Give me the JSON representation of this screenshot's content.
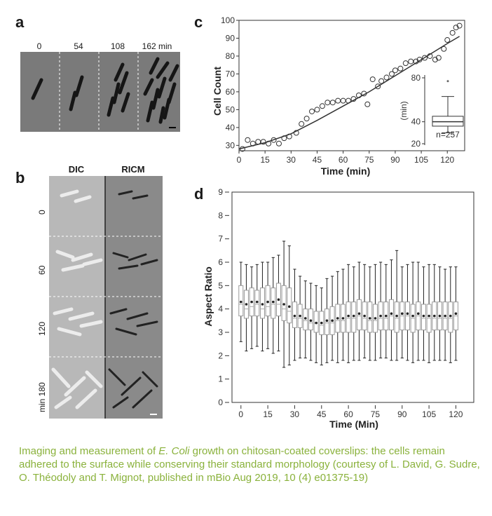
{
  "panels": {
    "a": {
      "letter": "a",
      "time_labels": [
        "0",
        "54",
        "108",
        "162 min"
      ]
    },
    "b": {
      "letter": "b",
      "columns": [
        "DIC",
        "RICM"
      ],
      "rows": [
        "0",
        "60",
        "120",
        "min 180"
      ]
    },
    "c": {
      "letter": "c",
      "ylabel": "Cell Count",
      "xlabel": "Time (min)",
      "inset_ylabel": "(min)",
      "inset_n": "n=257"
    },
    "d": {
      "letter": "d",
      "ylabel": "Aspect Ratio",
      "xlabel": "Time (Min)"
    }
  },
  "caption": {
    "pre": "Imaging and measurement of ",
    "italic": "E. Coli",
    "post": " growth on chitosan-coated coverslips: the cells remain adhered to the surface while conserving their standard morphology (courtesy of L. David, G. Sudre, O. Théodoly and T. Mignot, published in mBio Aug 2019, 10 (4) e01375-19)"
  },
  "chart_data": [
    {
      "type": "scatter",
      "panel": "c",
      "xlabel": "Time (min)",
      "ylabel": "Cell Count",
      "xlim": [
        0,
        130
      ],
      "ylim": [
        27,
        100
      ],
      "xticks": [
        0,
        15,
        30,
        45,
        60,
        75,
        90,
        105,
        120
      ],
      "yticks": [
        30,
        40,
        50,
        60,
        70,
        80,
        90,
        100
      ],
      "points": [
        [
          2,
          28
        ],
        [
          5,
          33
        ],
        [
          8,
          31
        ],
        [
          11,
          32
        ],
        [
          14,
          32
        ],
        [
          17,
          31
        ],
        [
          20,
          33
        ],
        [
          23,
          31
        ],
        [
          26,
          34
        ],
        [
          29,
          35
        ],
        [
          33,
          37
        ],
        [
          36,
          42
        ],
        [
          39,
          45
        ],
        [
          42,
          49
        ],
        [
          45,
          50
        ],
        [
          48,
          52
        ],
        [
          51,
          54
        ],
        [
          54,
          54
        ],
        [
          57,
          55
        ],
        [
          60,
          55
        ],
        [
          63,
          55
        ],
        [
          66,
          56
        ],
        [
          69,
          58
        ],
        [
          72,
          59
        ],
        [
          74,
          53
        ],
        [
          77,
          67
        ],
        [
          80,
          63
        ],
        [
          82,
          66
        ],
        [
          85,
          68
        ],
        [
          88,
          70
        ],
        [
          90,
          72
        ],
        [
          93,
          73
        ],
        [
          96,
          76
        ],
        [
          99,
          77
        ],
        [
          102,
          77
        ],
        [
          104,
          78
        ],
        [
          107,
          79
        ],
        [
          110,
          80
        ],
        [
          113,
          78
        ],
        [
          115,
          79
        ],
        [
          118,
          84
        ],
        [
          120,
          89
        ],
        [
          123,
          93
        ],
        [
          125,
          96
        ],
        [
          127,
          97
        ]
      ],
      "fit": [
        [
          0,
          28
        ],
        [
          15,
          31.5
        ],
        [
          30,
          36.5
        ],
        [
          45,
          44
        ],
        [
          60,
          52
        ],
        [
          75,
          60
        ],
        [
          90,
          69
        ],
        [
          105,
          78
        ],
        [
          120,
          87
        ],
        [
          127,
          91
        ]
      ],
      "grid": false,
      "inset": {
        "type": "boxplot",
        "ylabel": "(min)",
        "yticks": [
          20,
          40,
          80
        ],
        "ylim": [
          20,
          80
        ],
        "whisker_low": 30,
        "q1": 36,
        "median": 40,
        "q3": 45,
        "whisker_high": 63,
        "outliers": [
          77
        ],
        "annotation": "n=257"
      }
    },
    {
      "type": "boxplot",
      "panel": "d",
      "xlabel": "Time (Min)",
      "ylabel": "Aspect Ratio",
      "ylim": [
        0,
        9
      ],
      "yticks": [
        0,
        1,
        2,
        3,
        4,
        5,
        6,
        7,
        8,
        9
      ],
      "xticks": [
        0,
        15,
        30,
        45,
        60,
        75,
        90,
        105,
        120
      ],
      "x_start": 0,
      "x_step": 3,
      "boxes": [
        {
          "wl": 2.6,
          "q1": 3.7,
          "med": 4.2,
          "q3": 5.0,
          "wh": 6.0,
          "mean": 4.3
        },
        {
          "wl": 2.2,
          "q1": 3.6,
          "med": 4.0,
          "q3": 4.8,
          "wh": 5.9,
          "mean": 4.2
        },
        {
          "wl": 2.3,
          "q1": 3.7,
          "med": 4.1,
          "q3": 4.9,
          "wh": 5.8,
          "mean": 4.3
        },
        {
          "wl": 2.4,
          "q1": 3.7,
          "med": 4.2,
          "q3": 4.8,
          "wh": 5.9,
          "mean": 4.3
        },
        {
          "wl": 2.2,
          "q1": 3.6,
          "med": 4.0,
          "q3": 4.9,
          "wh": 6.0,
          "mean": 4.2
        },
        {
          "wl": 2.3,
          "q1": 3.7,
          "med": 4.1,
          "q3": 5.0,
          "wh": 6.0,
          "mean": 4.3
        },
        {
          "wl": 2.1,
          "q1": 3.6,
          "med": 4.2,
          "q3": 4.9,
          "wh": 6.2,
          "mean": 4.3
        },
        {
          "wl": 2.2,
          "q1": 3.7,
          "med": 4.2,
          "q3": 5.1,
          "wh": 6.3,
          "mean": 4.4
        },
        {
          "wl": 1.5,
          "q1": 3.5,
          "med": 4.0,
          "q3": 5.0,
          "wh": 6.9,
          "mean": 4.2
        },
        {
          "wl": 1.6,
          "q1": 3.4,
          "med": 3.9,
          "q3": 4.9,
          "wh": 6.7,
          "mean": 4.1
        },
        {
          "wl": 1.8,
          "q1": 3.2,
          "med": 3.6,
          "q3": 4.3,
          "wh": 5.7,
          "mean": 3.7
        },
        {
          "wl": 1.9,
          "q1": 3.2,
          "med": 3.6,
          "q3": 4.2,
          "wh": 5.4,
          "mean": 3.7
        },
        {
          "wl": 1.9,
          "q1": 3.1,
          "med": 3.5,
          "q3": 4.0,
          "wh": 5.2,
          "mean": 3.6
        },
        {
          "wl": 1.8,
          "q1": 3.1,
          "med": 3.4,
          "q3": 4.0,
          "wh": 5.1,
          "mean": 3.5
        },
        {
          "wl": 1.7,
          "q1": 3.0,
          "med": 3.4,
          "q3": 3.9,
          "wh": 5.0,
          "mean": 3.4
        },
        {
          "wl": 1.6,
          "q1": 2.9,
          "med": 3.3,
          "q3": 3.9,
          "wh": 4.9,
          "mean": 3.4
        },
        {
          "wl": 1.7,
          "q1": 2.9,
          "med": 3.4,
          "q3": 4.0,
          "wh": 5.3,
          "mean": 3.5
        },
        {
          "wl": 1.8,
          "q1": 2.9,
          "med": 3.4,
          "q3": 4.1,
          "wh": 5.4,
          "mean": 3.5
        },
        {
          "wl": 1.7,
          "q1": 3.0,
          "med": 3.5,
          "q3": 4.2,
          "wh": 5.6,
          "mean": 3.6
        },
        {
          "wl": 1.8,
          "q1": 3.0,
          "med": 3.5,
          "q3": 4.2,
          "wh": 5.7,
          "mean": 3.6
        },
        {
          "wl": 1.7,
          "q1": 3.0,
          "med": 3.6,
          "q3": 4.3,
          "wh": 5.9,
          "mean": 3.7
        },
        {
          "wl": 1.8,
          "q1": 3.0,
          "med": 3.6,
          "q3": 4.3,
          "wh": 5.8,
          "mean": 3.7
        },
        {
          "wl": 1.8,
          "q1": 3.1,
          "med": 3.7,
          "q3": 4.4,
          "wh": 6.0,
          "mean": 3.8
        },
        {
          "wl": 1.9,
          "q1": 3.1,
          "med": 3.6,
          "q3": 4.3,
          "wh": 5.9,
          "mean": 3.7
        },
        {
          "wl": 1.8,
          "q1": 3.0,
          "med": 3.5,
          "q3": 4.3,
          "wh": 5.8,
          "mean": 3.6
        },
        {
          "wl": 1.8,
          "q1": 3.0,
          "med": 3.5,
          "q3": 4.2,
          "wh": 5.9,
          "mean": 3.6
        },
        {
          "wl": 1.9,
          "q1": 3.1,
          "med": 3.6,
          "q3": 4.3,
          "wh": 6.0,
          "mean": 3.7
        },
        {
          "wl": 1.9,
          "q1": 3.1,
          "med": 3.6,
          "q3": 4.3,
          "wh": 5.9,
          "mean": 3.7
        },
        {
          "wl": 1.8,
          "q1": 3.1,
          "med": 3.7,
          "q3": 4.4,
          "wh": 6.1,
          "mean": 3.8
        },
        {
          "wl": 1.8,
          "q1": 3.0,
          "med": 3.6,
          "q3": 4.3,
          "wh": 6.5,
          "mean": 3.7
        },
        {
          "wl": 1.9,
          "q1": 3.1,
          "med": 3.7,
          "q3": 4.3,
          "wh": 5.8,
          "mean": 3.8
        },
        {
          "wl": 1.8,
          "q1": 3.1,
          "med": 3.7,
          "q3": 4.3,
          "wh": 5.9,
          "mean": 3.8
        },
        {
          "wl": 1.7,
          "q1": 3.0,
          "med": 3.6,
          "q3": 4.2,
          "wh": 6.0,
          "mean": 3.7
        },
        {
          "wl": 1.8,
          "q1": 3.1,
          "med": 3.7,
          "q3": 4.3,
          "wh": 6.0,
          "mean": 3.8
        },
        {
          "wl": 1.8,
          "q1": 3.1,
          "med": 3.6,
          "q3": 4.2,
          "wh": 5.8,
          "mean": 3.7
        },
        {
          "wl": 1.7,
          "q1": 3.0,
          "med": 3.6,
          "q3": 4.2,
          "wh": 5.9,
          "mean": 3.7
        },
        {
          "wl": 1.8,
          "q1": 3.1,
          "med": 3.6,
          "q3": 4.3,
          "wh": 5.9,
          "mean": 3.7
        },
        {
          "wl": 1.8,
          "q1": 3.1,
          "med": 3.6,
          "q3": 4.3,
          "wh": 5.8,
          "mean": 3.7
        },
        {
          "wl": 1.8,
          "q1": 3.1,
          "med": 3.6,
          "q3": 4.3,
          "wh": 5.7,
          "mean": 3.7
        },
        {
          "wl": 1.7,
          "q1": 3.0,
          "med": 3.6,
          "q3": 4.3,
          "wh": 5.8,
          "mean": 3.7
        },
        {
          "wl": 1.8,
          "q1": 3.1,
          "med": 3.7,
          "q3": 4.3,
          "wh": 5.8,
          "mean": 3.8
        }
      ],
      "grid": false
    }
  ]
}
